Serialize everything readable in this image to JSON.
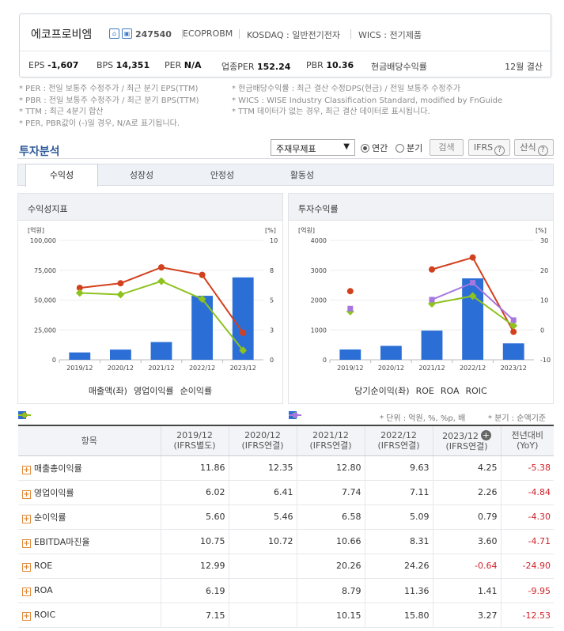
{
  "company": {
    "name": "에코프로비엠",
    "code": "247540",
    "eng_name": "ECOPROBM",
    "market": "KOSDAQ : 일반전기전자",
    "wics": "WICS : 전기제품",
    "icon1": "home-icon",
    "icon2": "chart-icon"
  },
  "metrics": {
    "eps_label": "EPS",
    "eps_value": "-1,607",
    "bps_label": "BPS",
    "bps_value": "14,351",
    "per_label": "PER",
    "per_value": "N/A",
    "ind_per_label": "업종PER",
    "ind_per_value": "152.24",
    "pbr_label": "PBR",
    "pbr_value": "10.36",
    "div_label": "현금배당수익률",
    "settle": "12월 결산"
  },
  "notes": {
    "left": [
      "* PER : 전일 보통주 수정주가 / 최근 분기 EPS(TTM)",
      "* PBR : 전일 보통주 수정주가 / 최근 분기 BPS(TTM)",
      "* TTM : 최근 4분기 합산",
      "* PER, PBR값이 (-)일 경우, N/A로 표기됩니다."
    ],
    "right": [
      "* 현금배당수익률 : 최근 결산 수정DPS(현금) / 전일 보통주 수정주가",
      "* WICS : WISE Industry Classification Standard, modified by FnGuide",
      "* TTM 데이터가 없는 경우, 최근 결산 데이터로 표시됩니다."
    ]
  },
  "analysis": {
    "title": "투자분석",
    "select_value": "주재무제표",
    "radio_annual": "연간",
    "radio_quarter": "분기",
    "search_button": "검색",
    "ifrs_button": "IFRS",
    "formula_button": "산식"
  },
  "tabs": [
    "수익성",
    "성장성",
    "안정성",
    "활동성"
  ],
  "chart_data": [
    {
      "type": "bar",
      "title": "수익성지표",
      "ylabel": "[억원]",
      "y2label": "[%]",
      "categories": [
        "2019/12",
        "2020/12",
        "2021/12",
        "2022/12",
        "2023/12"
      ],
      "ylim": [
        0,
        100000
      ],
      "yticks": [
        "0",
        "25,000",
        "50,000",
        "75,000",
        "100,000"
      ],
      "y2lim": [
        0,
        10
      ],
      "y2ticks": [
        "0",
        "3",
        "5",
        "8",
        "10"
      ],
      "series": [
        {
          "name": "매출액(좌)",
          "kind": "bar",
          "axis": "left",
          "color": "#2b6fd6",
          "values": [
            6161,
            8547,
            14856,
            53576,
            69009
          ]
        },
        {
          "name": "영업이익률",
          "kind": "line",
          "axis": "right",
          "color": "#d2401d",
          "values": [
            6.02,
            6.41,
            7.74,
            7.11,
            2.26
          ]
        },
        {
          "name": "순이익률",
          "kind": "line",
          "axis": "right",
          "color": "#8dc21f",
          "values": [
            5.6,
            5.46,
            6.58,
            5.09,
            0.79
          ]
        }
      ],
      "legend": "bottom"
    },
    {
      "type": "bar",
      "title": "투자수익률",
      "ylabel": "[억원]",
      "y2label": "[%]",
      "categories": [
        "2019/12",
        "2020/12",
        "2021/12",
        "2022/12",
        "2023/12"
      ],
      "ylim": [
        0,
        4000
      ],
      "yticks": [
        "0",
        "1000",
        "2000",
        "3000",
        "4000"
      ],
      "y2lim": [
        -10,
        30
      ],
      "y2ticks": [
        "-10",
        "0",
        "10",
        "20",
        "30"
      ],
      "series": [
        {
          "name": "당기순이익(좌)",
          "kind": "bar",
          "axis": "left",
          "color": "#2b6fd6",
          "values": [
            345,
            467,
            978,
            2727,
            550
          ]
        },
        {
          "name": "ROE",
          "kind": "line",
          "axis": "right",
          "color": "#d2401d",
          "values": [
            12.99,
            null,
            20.26,
            24.26,
            -0.64
          ]
        },
        {
          "name": "ROA",
          "kind": "line",
          "axis": "right",
          "color": "#8dc21f",
          "values": [
            6.19,
            null,
            8.79,
            11.36,
            1.41
          ]
        },
        {
          "name": "ROIC",
          "kind": "line",
          "axis": "right",
          "color": "#a777e0",
          "values": [
            7.15,
            null,
            10.15,
            15.8,
            3.27
          ]
        }
      ],
      "legend": "bottom"
    }
  ],
  "table": {
    "unit_note": "* 단위 : 억원, %, %p, 배",
    "quarter_note": "* 분기 : 순액기준",
    "header_item": "항목",
    "columns": [
      {
        "year": "2019/12",
        "sub": "(IFRS별도)"
      },
      {
        "year": "2020/12",
        "sub": "(IFRS연결)"
      },
      {
        "year": "2021/12",
        "sub": "(IFRS연결)"
      },
      {
        "year": "2022/12",
        "sub": "(IFRS연결)"
      },
      {
        "year": "2023/12",
        "sub": "(IFRS연결)"
      }
    ],
    "yoy_header": "전년대비",
    "yoy_sub": "(YoY)",
    "rows": [
      {
        "label": "매출총이익률",
        "values": [
          "11.86",
          "12.35",
          "12.80",
          "9.63",
          "4.25"
        ],
        "yoy": "-5.38"
      },
      {
        "label": "영업이익률",
        "values": [
          "6.02",
          "6.41",
          "7.74",
          "7.11",
          "2.26"
        ],
        "yoy": "-4.84"
      },
      {
        "label": "순이익률",
        "values": [
          "5.60",
          "5.46",
          "6.58",
          "5.09",
          "0.79"
        ],
        "yoy": "-4.30"
      },
      {
        "label": "EBITDA마진율",
        "values": [
          "10.75",
          "10.72",
          "10.66",
          "8.31",
          "3.60"
        ],
        "yoy": "-4.71"
      },
      {
        "label": "ROE",
        "values": [
          "12.99",
          "",
          "20.26",
          "24.26",
          "-0.64"
        ],
        "yoy": "-24.90"
      },
      {
        "label": "ROA",
        "values": [
          "6.19",
          "",
          "8.79",
          "11.36",
          "1.41"
        ],
        "yoy": "-9.95"
      },
      {
        "label": "ROIC",
        "values": [
          "7.15",
          "",
          "10.15",
          "15.80",
          "3.27"
        ],
        "yoy": "-12.53"
      }
    ]
  }
}
